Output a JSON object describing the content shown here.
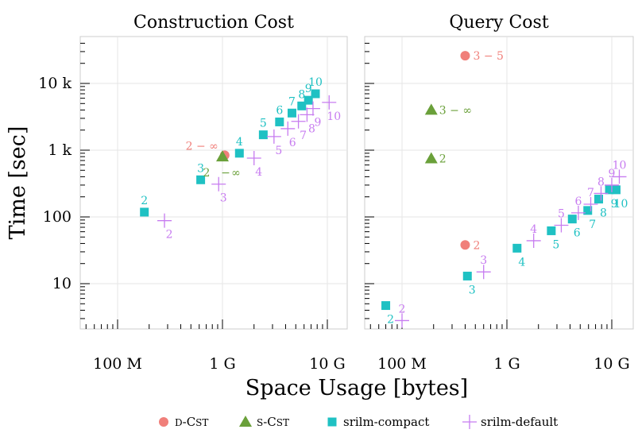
{
  "chart_data": {
    "type": "scatter",
    "ylabel": "Time [sec]",
    "xlabel": "Space Usage [bytes]",
    "xscale": "log",
    "yscale": "log",
    "xlim": [
      35000000,
      20000000000
    ],
    "ylim": [
      2,
      50000
    ],
    "grid": true,
    "legend_position": "bottom",
    "xticks": [
      {
        "value": 100000000,
        "label": "100 M"
      },
      {
        "value": 1000000000,
        "label": "1 G"
      },
      {
        "value": 10000000000,
        "label": "10 G"
      }
    ],
    "yticks": [
      {
        "value": 10,
        "label": "10"
      },
      {
        "value": 100,
        "label": "100"
      },
      {
        "value": 1000,
        "label": "1 k"
      },
      {
        "value": 10000,
        "label": "10 k"
      }
    ],
    "series_styles": [
      {
        "name": "D-CST",
        "marker": "circle",
        "color": "#f07f7a"
      },
      {
        "name": "S-CST",
        "marker": "triangle",
        "color": "#6aa03a"
      },
      {
        "name": "srilm-compact",
        "marker": "square",
        "color": "#1fc1c3"
      },
      {
        "name": "srilm-default",
        "marker": "plus",
        "color": "#c77cf0"
      }
    ],
    "legend": [
      {
        "series": "D-CST",
        "label_prefix": "D",
        "label_sep": "-",
        "label_cap": "C",
        "label_small": "ST"
      },
      {
        "series": "S-CST",
        "label_prefix": "S",
        "label_sep": "-",
        "label_cap": "C",
        "label_small": "ST"
      },
      {
        "series": "srilm-compact",
        "label": "srilm-compact"
      },
      {
        "series": "srilm-default",
        "label": "srilm-default"
      }
    ],
    "panels": [
      {
        "title": "Construction Cost",
        "series": [
          {
            "name": "D-CST",
            "points": [
              {
                "x": 1050000000,
                "y": 840,
                "label": "2 − ∞",
                "label_side": "left"
              }
            ]
          },
          {
            "name": "S-CST",
            "points": [
              {
                "x": 1000000000,
                "y": 800,
                "label": "2 − ∞",
                "label_side": "below-split"
              }
            ]
          },
          {
            "name": "srilm-compact",
            "points": [
              {
                "x": 180000000,
                "y": 118,
                "label": "2",
                "label_side": "above"
              },
              {
                "x": 620000000,
                "y": 360,
                "label": "3",
                "label_side": "above"
              },
              {
                "x": 1450000000,
                "y": 900,
                "label": "4",
                "label_side": "above"
              },
              {
                "x": 2450000000,
                "y": 1700,
                "label": "5",
                "label_side": "above"
              },
              {
                "x": 3500000000,
                "y": 2650,
                "label": "6",
                "label_side": "above"
              },
              {
                "x": 4600000000,
                "y": 3600,
                "label": "7",
                "label_side": "above"
              },
              {
                "x": 5700000000,
                "y": 4600,
                "label": "8",
                "label_side": "above"
              },
              {
                "x": 6600000000,
                "y": 5600,
                "label": "9",
                "label_side": "above"
              },
              {
                "x": 7700000000,
                "y": 7000,
                "label": "10",
                "label_side": "above"
              }
            ]
          },
          {
            "name": "srilm-default",
            "points": [
              {
                "x": 280000000,
                "y": 88,
                "label": "2",
                "label_side": "below"
              },
              {
                "x": 920000000,
                "y": 310,
                "label": "3",
                "label_side": "below"
              },
              {
                "x": 2000000000,
                "y": 760,
                "label": "4",
                "label_side": "below"
              },
              {
                "x": 3100000000,
                "y": 1600,
                "label": "5",
                "label_side": "below"
              },
              {
                "x": 4200000000,
                "y": 2100,
                "label": "6",
                "label_side": "below"
              },
              {
                "x": 5300000000,
                "y": 2700,
                "label": "7",
                "label_side": "below"
              },
              {
                "x": 6400000000,
                "y": 3400,
                "label": "8",
                "label_side": "below"
              },
              {
                "x": 7300000000,
                "y": 4200,
                "label": "9",
                "label_side": "below"
              },
              {
                "x": 10400000000,
                "y": 5200,
                "label": "10",
                "label_side": "below"
              }
            ]
          }
        ]
      },
      {
        "title": "Query Cost",
        "series": [
          {
            "name": "D-CST",
            "points": [
              {
                "x": 400000000,
                "y": 26000,
                "label": "3 − 5",
                "label_side": "right"
              },
              {
                "x": 400000000,
                "y": 38,
                "label": "2",
                "label_side": "right"
              }
            ]
          },
          {
            "name": "S-CST",
            "points": [
              {
                "x": 190000000,
                "y": 4000,
                "label": "3 − ∞",
                "label_side": "right"
              },
              {
                "x": 190000000,
                "y": 750,
                "label": "2",
                "label_side": "right"
              }
            ]
          },
          {
            "name": "srilm-compact",
            "points": [
              {
                "x": 70000000,
                "y": 4.7,
                "label": "2",
                "label_side": "below"
              },
              {
                "x": 420000000,
                "y": 13,
                "label": "3",
                "label_side": "below"
              },
              {
                "x": 1250000000,
                "y": 34,
                "label": "4",
                "label_side": "below"
              },
              {
                "x": 2650000000,
                "y": 62,
                "label": "5",
                "label_side": "below"
              },
              {
                "x": 4200000000,
                "y": 93,
                "label": "6",
                "label_side": "below"
              },
              {
                "x": 5900000000,
                "y": 125,
                "label": "7",
                "label_side": "below"
              },
              {
                "x": 7500000000,
                "y": 185,
                "label": "8",
                "label_side": "below"
              },
              {
                "x": 9500000000,
                "y": 255,
                "label": "9",
                "label_side": "below"
              },
              {
                "x": 11000000000,
                "y": 255,
                "label": "10",
                "label_side": "below"
              }
            ]
          },
          {
            "name": "srilm-default",
            "points": [
              {
                "x": 100000000,
                "y": 2.8,
                "label": "2",
                "label_side": "above"
              },
              {
                "x": 600000000,
                "y": 15,
                "label": "3",
                "label_side": "above"
              },
              {
                "x": 1800000000,
                "y": 44,
                "label": "4",
                "label_side": "above"
              },
              {
                "x": 3300000000,
                "y": 75,
                "label": "5",
                "label_side": "above"
              },
              {
                "x": 4800000000,
                "y": 115,
                "label": "6",
                "label_side": "above"
              },
              {
                "x": 6300000000,
                "y": 155,
                "label": "7",
                "label_side": "above"
              },
              {
                "x": 7900000000,
                "y": 225,
                "label": "8",
                "label_side": "above"
              },
              {
                "x": 10000000000,
                "y": 300,
                "label": "9",
                "label_side": "above"
              },
              {
                "x": 11800000000,
                "y": 400,
                "label": "10",
                "label_side": "above"
              }
            ]
          }
        ]
      }
    ]
  }
}
